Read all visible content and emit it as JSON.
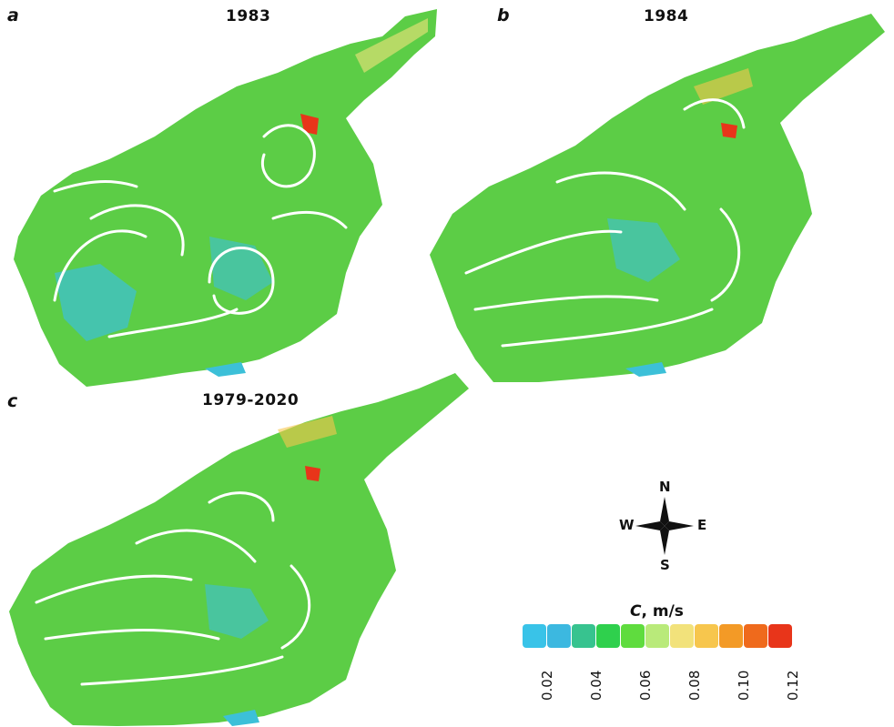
{
  "panels": [
    {
      "letter": "a",
      "title": "1983"
    },
    {
      "letter": "b",
      "title": "1984"
    },
    {
      "letter": "c",
      "title": "1979-2020"
    }
  ],
  "compass": {
    "north": "N",
    "south": "S",
    "east": "E",
    "west": "W"
  },
  "legend": {
    "title_var": "C",
    "title_unit": ", m/s",
    "colors": [
      "#39c3e8",
      "#3cb8e0",
      "#37c38f",
      "#2fd04d",
      "#5fdc3e",
      "#b9ea7a",
      "#f2e27b",
      "#f7c64d",
      "#f39a26",
      "#ef6a1c",
      "#e8351a"
    ],
    "ticks": [
      "0.02",
      "0.04",
      "0.06",
      "0.08",
      "0.10",
      "0.12"
    ]
  },
  "colors": {
    "water": "#5ccd46",
    "water_light": "#9ee05a",
    "slow": "#3cc0d8",
    "fast": "#e84a1a"
  }
}
